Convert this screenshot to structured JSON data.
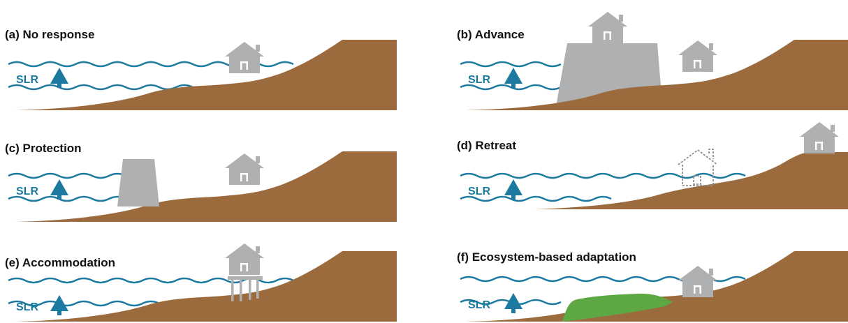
{
  "colors": {
    "water": "#1c7aa0",
    "land": "#9b6b3d",
    "structure": "#aeb0b2",
    "vegetation": "#5ea843",
    "dotted_outline": "#8e8e8e",
    "text": "#111111"
  },
  "slr_label": "SLR",
  "icons": {
    "arrow": "up-arrow-icon",
    "house": "house-icon"
  },
  "panels": [
    {
      "id": "a",
      "title": "(a) No response",
      "variant": "no-response"
    },
    {
      "id": "b",
      "title": "(b) Advance",
      "variant": "advance"
    },
    {
      "id": "c",
      "title": "(c) Protection",
      "variant": "protection"
    },
    {
      "id": "d",
      "title": "(d) Retreat",
      "variant": "retreat"
    },
    {
      "id": "e",
      "title": "(e) Accommodation",
      "variant": "accommodation"
    },
    {
      "id": "f",
      "title": "(f) Ecosystem-based adaptation",
      "variant": "ecosystem"
    }
  ]
}
